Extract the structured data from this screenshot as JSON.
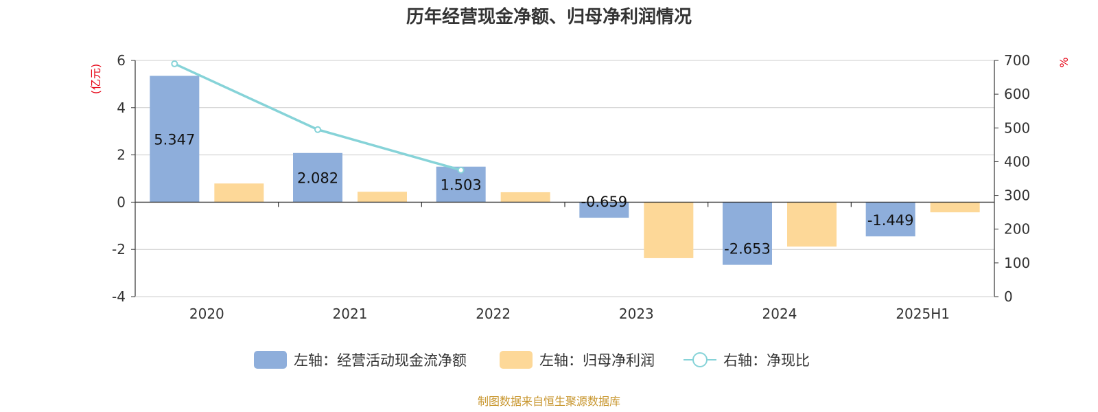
{
  "chart_data": {
    "type": "bar",
    "title": "历年经营现金净额、归母净利润情况",
    "categories": [
      "2020",
      "2021",
      "2022",
      "2023",
      "2024",
      "2025H1"
    ],
    "series": [
      {
        "name": "左轴：经营活动现金流净额",
        "axis": "left",
        "type": "bar",
        "color": "#8eaedb",
        "values": [
          5.347,
          2.082,
          1.503,
          -0.659,
          -2.653,
          -1.449
        ],
        "labels": [
          "5.347",
          "2.082",
          "1.503",
          "-0.659",
          "-2.653",
          "-1.449"
        ]
      },
      {
        "name": "左轴：归母净利润",
        "axis": "left",
        "type": "bar",
        "color": "#fdd898",
        "values": [
          0.79,
          0.44,
          0.42,
          -2.37,
          -1.88,
          -0.43
        ]
      },
      {
        "name": "右轴：净现比",
        "axis": "right",
        "type": "line",
        "color": "#86d3d8",
        "values": [
          690,
          495,
          375,
          null,
          null,
          null
        ]
      }
    ],
    "left_axis": {
      "label": "(亿元)",
      "range": [
        -4,
        6
      ],
      "ticks": [
        "-4",
        "-2",
        "0",
        "2",
        "4",
        "6"
      ]
    },
    "right_axis": {
      "label": "%",
      "range": [
        0,
        700
      ],
      "ticks": [
        "0",
        "100",
        "200",
        "300",
        "400",
        "500",
        "600",
        "700"
      ]
    },
    "grid": true,
    "legend_position": "bottom",
    "source": "制图数据来自恒生聚源数据库"
  }
}
